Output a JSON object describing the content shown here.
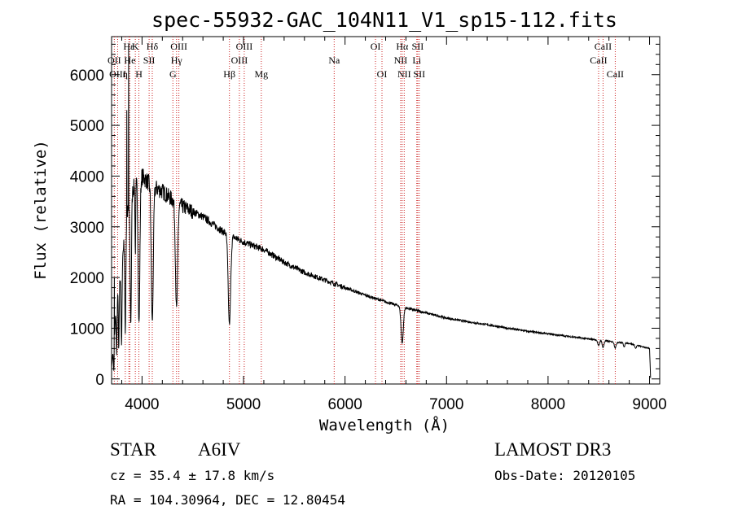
{
  "chart_data": {
    "type": "line",
    "title": "spec-55932-GAC_104N11_V1_sp15-112.fits",
    "xlabel": "Wavelength (Å)",
    "ylabel": "Flux (relative)",
    "xlim": [
      3700,
      9100
    ],
    "ylim": [
      -100,
      6750
    ],
    "xticks": [
      4000,
      5000,
      6000,
      7000,
      8000,
      9000
    ],
    "yticks": [
      0,
      1000,
      2000,
      3000,
      4000,
      5000,
      6000
    ],
    "spectrum": {
      "continuum": [
        [
          3700,
          200
        ],
        [
          3750,
          1500
        ],
        [
          3800,
          2200
        ],
        [
          3830,
          2900
        ],
        [
          3860,
          3300
        ],
        [
          3900,
          3700
        ],
        [
          3950,
          3900
        ],
        [
          4000,
          4000
        ],
        [
          4050,
          3900
        ],
        [
          4100,
          3800
        ],
        [
          4200,
          3700
        ],
        [
          4260,
          3600
        ],
        [
          4320,
          3500
        ],
        [
          4400,
          3400
        ],
        [
          4500,
          3300
        ],
        [
          4600,
          3200
        ],
        [
          4700,
          3050
        ],
        [
          4800,
          2900
        ],
        [
          4900,
          2800
        ],
        [
          5000,
          2700
        ],
        [
          5200,
          2550
        ],
        [
          5400,
          2300
        ],
        [
          5600,
          2100
        ],
        [
          5800,
          1950
        ],
        [
          6000,
          1800
        ],
        [
          6200,
          1650
        ],
        [
          6400,
          1520
        ],
        [
          6600,
          1400
        ],
        [
          6800,
          1300
        ],
        [
          7000,
          1200
        ],
        [
          7200,
          1130
        ],
        [
          7400,
          1070
        ],
        [
          7600,
          1000
        ],
        [
          7800,
          940
        ],
        [
          8000,
          890
        ],
        [
          8200,
          840
        ],
        [
          8400,
          790
        ],
        [
          8600,
          740
        ],
        [
          8800,
          700
        ],
        [
          9000,
          600
        ],
        [
          9010,
          20
        ]
      ],
      "absorptions": [
        {
          "center": 3722,
          "width": 6,
          "depth": 0.8
        },
        {
          "center": 3750,
          "width": 5,
          "depth": 0.7
        },
        {
          "center": 3771,
          "width": 5,
          "depth": 0.7
        },
        {
          "center": 3798,
          "width": 6,
          "depth": 0.7
        },
        {
          "center": 3835,
          "width": 7,
          "depth": 0.7
        },
        {
          "center": 3889,
          "width": 9,
          "depth": 0.7
        },
        {
          "center": 3934,
          "width": 5,
          "depth": 0.35
        },
        {
          "center": 3970,
          "width": 12,
          "depth": 0.72
        },
        {
          "center": 4101,
          "width": 14,
          "depth": 0.7
        },
        {
          "center": 4340,
          "width": 15,
          "depth": 0.6
        },
        {
          "center": 4861,
          "width": 17,
          "depth": 0.62
        },
        {
          "center": 6563,
          "width": 16,
          "depth": 0.5
        },
        {
          "center": 8498,
          "width": 12,
          "depth": 0.15
        },
        {
          "center": 8542,
          "width": 12,
          "depth": 0.18
        },
        {
          "center": 8662,
          "width": 12,
          "depth": 0.16
        },
        {
          "center": 8750,
          "width": 10,
          "depth": 0.1
        },
        {
          "center": 8863,
          "width": 10,
          "depth": 0.1
        }
      ],
      "emission_spikes": [
        {
          "center": 3868,
          "height": 6600
        },
        {
          "center": 3727,
          "height": 2000
        },
        {
          "center": 3850,
          "height": 5300
        }
      ]
    },
    "line_markers": [
      {
        "label": "Hε",
        "wavelength": 3870,
        "row": 0
      },
      {
        "label": "OII",
        "wavelength": 3727,
        "row": 1
      },
      {
        "label": "OIII",
        "wavelength": 3760,
        "row": 2
      },
      {
        "label": "K",
        "wavelength": 3934,
        "row": 0
      },
      {
        "label": "He",
        "wavelength": 3880,
        "row": 1
      },
      {
        "label": "η",
        "wavelength": 3835,
        "row": 2
      },
      {
        "label": "SII",
        "wavelength": 4070,
        "row": 1
      },
      {
        "label": "H",
        "wavelength": 3969,
        "row": 2
      },
      {
        "label": "Hδ",
        "wavelength": 4101,
        "row": 0
      },
      {
        "label": "OIII",
        "wavelength": 4363,
        "row": 0
      },
      {
        "label": "Hγ",
        "wavelength": 4340,
        "row": 1
      },
      {
        "label": "G",
        "wavelength": 4304,
        "row": 2
      },
      {
        "label": "OIII",
        "wavelength": 5007,
        "row": 0
      },
      {
        "label": "OIII",
        "wavelength": 4959,
        "row": 1
      },
      {
        "label": "Hβ",
        "wavelength": 4861,
        "row": 2
      },
      {
        "label": "Mg",
        "wavelength": 5175,
        "row": 2
      },
      {
        "label": "Na",
        "wavelength": 5893,
        "row": 1
      },
      {
        "label": "OI",
        "wavelength": 6300,
        "row": 0
      },
      {
        "label": "OI",
        "wavelength": 6364,
        "row": 2
      },
      {
        "label": "Hα",
        "wavelength": 6563,
        "row": 0
      },
      {
        "label": "SII",
        "wavelength": 6716,
        "row": 0
      },
      {
        "label": "NII",
        "wavelength": 6548,
        "row": 1
      },
      {
        "label": "Li",
        "wavelength": 6707,
        "row": 1
      },
      {
        "label": "NII",
        "wavelength": 6583,
        "row": 2
      },
      {
        "label": "SII",
        "wavelength": 6731,
        "row": 2
      },
      {
        "label": "CaII",
        "wavelength": 8542,
        "row": 0
      },
      {
        "label": "CaII",
        "wavelength": 8498,
        "row": 1
      },
      {
        "label": "CaII",
        "wavelength": 8662,
        "row": 2
      }
    ]
  },
  "info": {
    "object_class": "STAR",
    "subclass": "A6IV",
    "survey": "LAMOST DR3",
    "cz": "cz = 35.4 ± 17.8 km/s",
    "obs_date": "Obs-Date: 20120105",
    "coords": "RA = 104.30964, DEC =  12.80454"
  },
  "colors": {
    "spectrum": "#000000",
    "marker_lines": "#cc2222"
  }
}
